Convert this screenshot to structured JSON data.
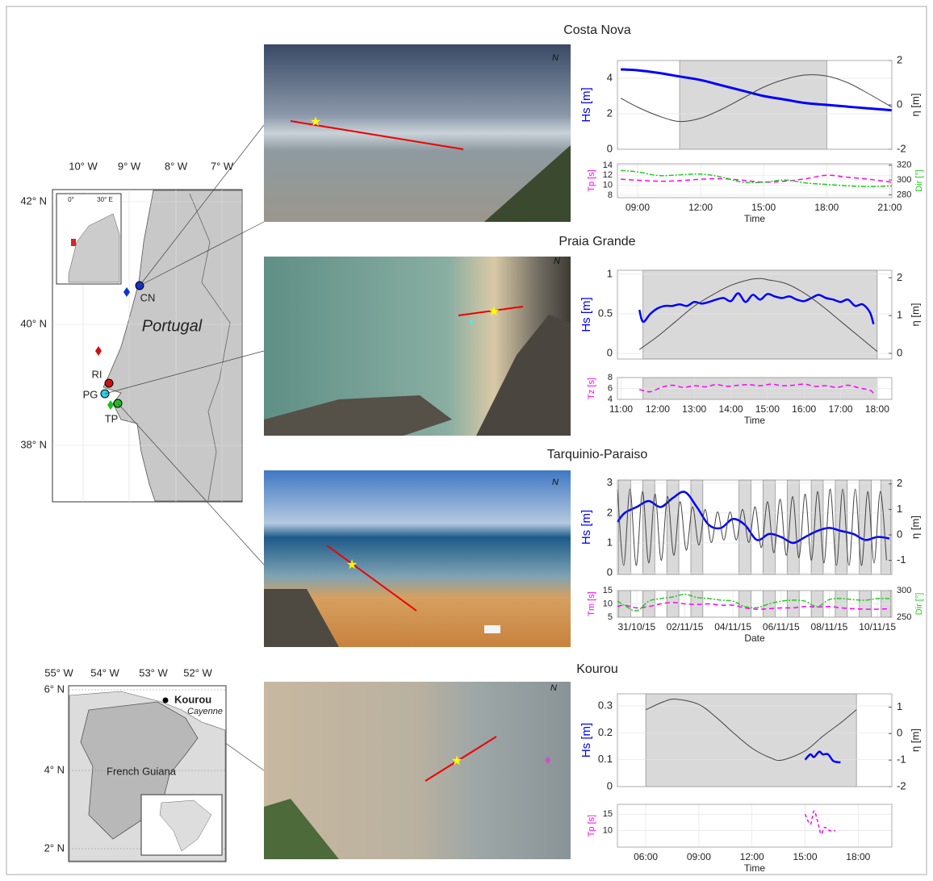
{
  "sites": [
    {
      "title": "Costa Nova",
      "north": "N"
    },
    {
      "title": "Praia Grande",
      "north": "N"
    },
    {
      "title": "Tarquinio-Paraiso",
      "north": "N"
    },
    {
      "title": "Kourou",
      "north": "N"
    }
  ],
  "maps": [
    {
      "lon_labels": [
        "10° W",
        "9° W",
        "8° W",
        "7° W"
      ],
      "lat_labels": [
        "42° N",
        "40° N",
        "38° N"
      ],
      "inset_labels": [
        "0°",
        "30° E"
      ],
      "site_labels": [
        "CN",
        "RI",
        "PG",
        "TP"
      ],
      "country": "Portugal"
    },
    {
      "lon_labels": [
        "55° W",
        "54° W",
        "53° W",
        "52° W"
      ],
      "lat_labels": [
        "6° N",
        "4° N",
        "2° N"
      ],
      "city": "Kourou",
      "town": "Cayenne",
      "country": "French Guiana"
    }
  ],
  "chart_data": [
    {
      "type": "line",
      "ylabel": "Hs [m]",
      "y2label": "η [m]",
      "xlim": [
        8.04,
        21.1
      ],
      "ylim": [
        0,
        5
      ],
      "yticks": [
        0,
        2,
        4
      ],
      "y2lim": [
        -2,
        2
      ],
      "y2ticks": [
        -2,
        0,
        2
      ],
      "grid": true,
      "shaded": [
        [
          11,
          18
        ]
      ],
      "shade_color": "#d9d9d9",
      "series": [
        {
          "color": "#0000ff",
          "width": 3,
          "x": [
            8.2,
            9,
            10,
            11,
            12,
            13,
            14,
            15,
            16,
            17,
            18,
            19,
            20,
            21.1
          ],
          "values": [
            4.5,
            4.45,
            4.3,
            4.1,
            3.9,
            3.6,
            3.3,
            3.0,
            2.8,
            2.6,
            2.5,
            2.4,
            2.3,
            2.2
          ]
        },
        {
          "axis": "y2",
          "color": "#444444",
          "width": 1,
          "x": [
            8.2,
            9,
            10,
            11,
            12,
            13,
            14,
            15,
            16,
            17,
            18,
            19,
            20,
            21.1
          ],
          "values": [
            0.3,
            -0.1,
            -0.5,
            -0.75,
            -0.6,
            -0.2,
            0.3,
            0.8,
            1.15,
            1.35,
            1.3,
            1.0,
            0.5,
            -0.1
          ]
        }
      ]
    },
    {
      "type": "line",
      "ylabel": "Tp [s]",
      "y2label": "Dir [°]",
      "xlabel": "Time",
      "xlim": [
        8.04,
        21.1
      ],
      "xticks": [
        {
          "value": 9,
          "label": "09:00"
        },
        {
          "value": 12,
          "label": "12:00"
        },
        {
          "value": 15,
          "label": "15:00"
        },
        {
          "value": 18,
          "label": "18:00"
        },
        {
          "value": 21,
          "label": "21:00"
        }
      ],
      "ylim": [
        7.5,
        14.3
      ],
      "yticks": [
        8,
        10,
        12,
        14
      ],
      "y2lim": [
        276,
        322
      ],
      "y2ticks": [
        280,
        300,
        320
      ],
      "grid": true,
      "series": [
        {
          "color": "#ff00ff",
          "width": 1.5,
          "dash": "6,4",
          "x": [
            8.2,
            9,
            10,
            11,
            12,
            13,
            14,
            15,
            16,
            17,
            18,
            19,
            20,
            21.1
          ],
          "values": [
            11.2,
            11,
            10.8,
            10.9,
            11.2,
            11.3,
            11,
            10.6,
            10.8,
            11.3,
            12,
            11.6,
            11.2,
            10.6
          ]
        },
        {
          "axis": "y2",
          "color": "#22cc22",
          "width": 1.5,
          "dash": "6,2,2,2",
          "x": [
            8.2,
            9,
            10,
            11,
            12,
            13,
            14,
            15,
            16,
            17,
            18,
            19,
            20,
            21.1
          ],
          "values": [
            313,
            311,
            306,
            307,
            308,
            304,
            297,
            297,
            300,
            296,
            294,
            292,
            291,
            292
          ]
        }
      ]
    },
    {
      "type": "line",
      "ylabel": "Hs [m]",
      "y2label": "η [m]",
      "xlim": [
        10.9,
        18.4
      ],
      "ylim": [
        -0.07,
        1.05
      ],
      "yticks": [
        0,
        0.5,
        1
      ],
      "y2lim": [
        -0.15,
        2.2
      ],
      "y2ticks": [
        0,
        1,
        2
      ],
      "grid": true,
      "shaded": [
        [
          11.6,
          18
        ]
      ],
      "shade_color": "#d9d9d9",
      "series": [
        {
          "color": "#0000ff",
          "width": 2.5,
          "x": [
            11.5,
            11.6,
            11.8,
            12,
            12.2,
            12.4,
            12.6,
            12.8,
            13,
            13.2,
            13.4,
            13.6,
            13.8,
            14,
            14.2,
            14.4,
            14.6,
            14.8,
            15,
            15.2,
            15.4,
            15.6,
            15.8,
            16,
            16.2,
            16.4,
            16.6,
            16.8,
            17,
            17.2,
            17.4,
            17.6,
            17.8,
            17.9
          ],
          "values": [
            0.55,
            0.4,
            0.5,
            0.57,
            0.6,
            0.6,
            0.62,
            0.6,
            0.65,
            0.63,
            0.65,
            0.68,
            0.7,
            0.66,
            0.76,
            0.65,
            0.74,
            0.68,
            0.75,
            0.72,
            0.7,
            0.72,
            0.68,
            0.66,
            0.7,
            0.74,
            0.7,
            0.68,
            0.65,
            0.68,
            0.6,
            0.62,
            0.52,
            0.37
          ]
        },
        {
          "axis": "y2",
          "color": "#444444",
          "width": 1,
          "x": [
            11.5,
            12,
            12.5,
            13,
            13.5,
            14,
            14.5,
            14.8,
            15,
            15.5,
            16,
            16.5,
            17,
            17.5,
            18
          ],
          "values": [
            0.1,
            0.45,
            0.85,
            1.25,
            1.55,
            1.8,
            1.95,
            1.98,
            1.95,
            1.85,
            1.6,
            1.25,
            0.85,
            0.45,
            0.05
          ]
        }
      ]
    },
    {
      "type": "line",
      "ylabel": "Tz [s]",
      "xlabel": "Time",
      "xlim": [
        10.9,
        18.4
      ],
      "xticks": [
        {
          "value": 11,
          "label": "11:00"
        },
        {
          "value": 12,
          "label": "12:00"
        },
        {
          "value": 13,
          "label": "13:00"
        },
        {
          "value": 14,
          "label": "14:00"
        },
        {
          "value": 15,
          "label": "15:00"
        },
        {
          "value": 16,
          "label": "16:00"
        },
        {
          "value": 17,
          "label": "17:00"
        },
        {
          "value": 18,
          "label": "18:00"
        }
      ],
      "ylim": [
        4,
        8
      ],
      "yticks": [
        4,
        6,
        8
      ],
      "grid": true,
      "shaded": [
        [
          11.6,
          18
        ]
      ],
      "shade_color": "#d9d9d9",
      "series": [
        {
          "color": "#ff00ff",
          "width": 1.5,
          "dash": "6,4",
          "x": [
            11.5,
            11.8,
            12.1,
            12.4,
            12.7,
            13,
            13.3,
            13.6,
            13.9,
            14.2,
            14.5,
            14.8,
            15.1,
            15.4,
            15.7,
            16,
            16.3,
            16.6,
            16.9,
            17.2,
            17.5,
            17.8,
            17.9
          ],
          "values": [
            5.8,
            5.4,
            6.2,
            6.6,
            6.2,
            6.5,
            6.3,
            6.7,
            6.4,
            6.6,
            6.7,
            6.5,
            6.8,
            6.5,
            6.6,
            6.8,
            6.4,
            6.5,
            6.2,
            6.6,
            6.1,
            5.7,
            5.1
          ]
        }
      ]
    },
    {
      "type": "line",
      "ylabel": "Hs [m]",
      "y2label": "η [m]",
      "xlim": [
        -0.8,
        10.6
      ],
      "ylim": [
        -0.05,
        3.1
      ],
      "yticks": [
        0,
        1,
        2,
        3
      ],
      "y2lim": [
        -1.55,
        2.15
      ],
      "y2ticks": [
        -1,
        0,
        1,
        2
      ],
      "grid": true,
      "shaded": [
        [
          -0.75,
          -0.25
        ],
        [
          0.25,
          0.75
        ],
        [
          1.25,
          1.75
        ],
        [
          2.25,
          2.75
        ],
        [
          4.25,
          4.75
        ],
        [
          5.25,
          5.75
        ],
        [
          6.25,
          6.75
        ],
        [
          7.25,
          7.75
        ],
        [
          8.25,
          8.75
        ],
        [
          9.25,
          9.75
        ],
        [
          10.15,
          10.55
        ]
      ],
      "shade_color": "#d9d9d9",
      "series": [
        {
          "color": "#0000ff",
          "width": 2.5,
          "x": [
            -0.8,
            -0.5,
            0,
            0.5,
            1,
            1.5,
            2,
            2.5,
            3,
            3.5,
            4,
            4.5,
            5,
            5.5,
            6,
            6.5,
            7,
            7.5,
            8,
            8.5,
            9,
            9.5,
            10,
            10.5
          ],
          "values": [
            1.7,
            2.0,
            2.2,
            2.4,
            2.2,
            2.5,
            2.7,
            2.2,
            1.6,
            1.5,
            1.8,
            1.6,
            1.1,
            1.3,
            1.2,
            1.0,
            1.2,
            1.4,
            1.5,
            1.4,
            1.3,
            1.1,
            1.2,
            1.15
          ]
        },
        {
          "axis": "y2",
          "color": "#444444",
          "width": 1,
          "x": [
            -0.8,
            -0.54,
            -0.28,
            -0.02,
            0.24,
            0.5,
            0.76,
            1.02,
            1.28,
            1.54,
            1.8,
            2.06,
            2.32,
            2.58,
            2.84,
            3.1,
            3.36,
            3.62,
            3.88,
            4.14,
            4.4,
            4.66,
            4.92,
            5.18,
            5.44,
            5.7,
            5.96,
            6.22,
            6.48,
            6.74,
            7.0,
            7.26,
            7.52,
            7.78,
            8.04,
            8.3,
            8.56,
            8.82,
            9.08,
            9.34,
            9.6,
            9.86,
            10.12,
            10.38
          ],
          "values": [
            1.8,
            -1.2,
            1.8,
            -1.2,
            1.7,
            -1.1,
            1.6,
            -1.0,
            1.5,
            -0.8,
            1.3,
            -0.6,
            1.1,
            -0.4,
            1.0,
            -0.3,
            0.9,
            -0.2,
            0.9,
            -0.2,
            1.0,
            -0.3,
            1.1,
            -0.5,
            1.3,
            -0.7,
            1.4,
            -0.8,
            1.5,
            -0.9,
            1.6,
            -1.0,
            1.7,
            -1.1,
            1.8,
            -1.2,
            1.8,
            -1.2,
            1.8,
            -1.2,
            1.7,
            -1.1,
            1.7,
            -1.0
          ]
        }
      ]
    },
    {
      "type": "line",
      "ylabel": "Tm [s]",
      "y2label": "Dir [°]",
      "xlabel": "Date",
      "xlim": [
        -0.8,
        10.6
      ],
      "xticks": [
        {
          "value": 0,
          "label": "31/10/15"
        },
        {
          "value": 2,
          "label": "02/11/15"
        },
        {
          "value": 4,
          "label": "04/11/15"
        },
        {
          "value": 6,
          "label": "06/11/15"
        },
        {
          "value": 8,
          "label": "08/11/15"
        },
        {
          "value": 10,
          "label": "10/11/15"
        }
      ],
      "ylim": [
        5,
        15
      ],
      "yticks": [
        5,
        10,
        15
      ],
      "y2lim": [
        250,
        300
      ],
      "y2ticks": [
        250,
        300
      ],
      "grid": true,
      "shaded": [
        [
          -0.75,
          -0.25
        ],
        [
          0.25,
          0.75
        ],
        [
          1.25,
          1.75
        ],
        [
          2.25,
          2.75
        ],
        [
          4.25,
          4.75
        ],
        [
          5.25,
          5.75
        ],
        [
          6.25,
          6.75
        ],
        [
          7.25,
          7.75
        ],
        [
          8.25,
          8.75
        ],
        [
          9.25,
          9.75
        ],
        [
          10.15,
          10.55
        ]
      ],
      "shade_color": "#d9d9d9",
      "series": [
        {
          "color": "#ff00ff",
          "width": 1.5,
          "dash": "6,4",
          "x": [
            -0.8,
            -0.5,
            0,
            0.5,
            1,
            1.5,
            2,
            2.5,
            3,
            3.5,
            4,
            4.5,
            5,
            5.5,
            6,
            6.5,
            7,
            7.5,
            8,
            8.5,
            9,
            9.5,
            10,
            10.5
          ],
          "values": [
            9,
            9.5,
            8.5,
            9,
            10,
            10.5,
            10,
            9.8,
            10,
            9.5,
            9.5,
            8.5,
            8,
            8.2,
            8.5,
            8.5,
            9,
            8.8,
            9,
            8.5,
            8.2,
            8,
            8,
            8.2
          ]
        },
        {
          "axis": "y2",
          "color": "#22cc22",
          "width": 1.5,
          "dash": "6,2,2,2",
          "x": [
            -0.8,
            -0.5,
            0,
            0.5,
            1,
            1.5,
            2,
            2.5,
            3,
            3.5,
            4,
            4.5,
            5,
            5.5,
            6,
            6.5,
            7,
            7.5,
            8,
            8.5,
            9,
            9.5,
            10,
            10.5
          ],
          "values": [
            280,
            272,
            262,
            280,
            285,
            288,
            293,
            287,
            285,
            282,
            280,
            270,
            268,
            275,
            280,
            282,
            280,
            270,
            283,
            285,
            283,
            282,
            285,
            285
          ]
        }
      ]
    },
    {
      "type": "line",
      "ylabel": "Hs [m]",
      "y2label": "η [m]",
      "xlim": [
        4.4,
        19.9
      ],
      "ylim": [
        0,
        0.345
      ],
      "yticks": [
        0,
        0.1,
        0.2,
        0.3
      ],
      "y2lim": [
        -2,
        1.5
      ],
      "y2ticks": [
        -2,
        -1,
        0,
        1
      ],
      "grid": true,
      "shaded": [
        [
          6,
          17.9
        ]
      ],
      "shade_color": "#d9d9d9",
      "series": [
        {
          "color": "#0000ff",
          "width": 2.5,
          "x": [
            15,
            15.3,
            15.5,
            15.8,
            16,
            16.3,
            16.6,
            17
          ],
          "values": [
            0.1,
            0.12,
            0.11,
            0.13,
            0.12,
            0.12,
            0.095,
            0.09
          ]
        },
        {
          "axis": "y2",
          "color": "#444444",
          "width": 1,
          "x": [
            6,
            7,
            7.7,
            9,
            10,
            11,
            12,
            13,
            13.7,
            15,
            16,
            17,
            17.9
          ],
          "values": [
            0.9,
            1.2,
            1.3,
            1.1,
            0.6,
            0.0,
            -0.55,
            -0.9,
            -1.0,
            -0.65,
            -0.1,
            0.4,
            0.9
          ]
        }
      ]
    },
    {
      "type": "line",
      "ylabel": "Tp [s]",
      "xlabel": "Time",
      "xlim": [
        4.4,
        19.9
      ],
      "xticks": [
        {
          "value": 6,
          "label": "06:00"
        },
        {
          "value": 9,
          "label": "09:00"
        },
        {
          "value": 12,
          "label": "12:00"
        },
        {
          "value": 15,
          "label": "15:00"
        },
        {
          "value": 18,
          "label": "18:00"
        }
      ],
      "ylim": [
        5,
        18
      ],
      "yticks": [
        10,
        15
      ],
      "grid": true,
      "series": [
        {
          "color": "#ff00ff",
          "width": 1.5,
          "dash": "4,3",
          "x": [
            15,
            15.3,
            15.5,
            15.7,
            15.9,
            16.1,
            16.4,
            16.7
          ],
          "values": [
            15,
            12,
            16,
            13,
            9,
            11,
            10,
            10
          ]
        }
      ]
    }
  ]
}
